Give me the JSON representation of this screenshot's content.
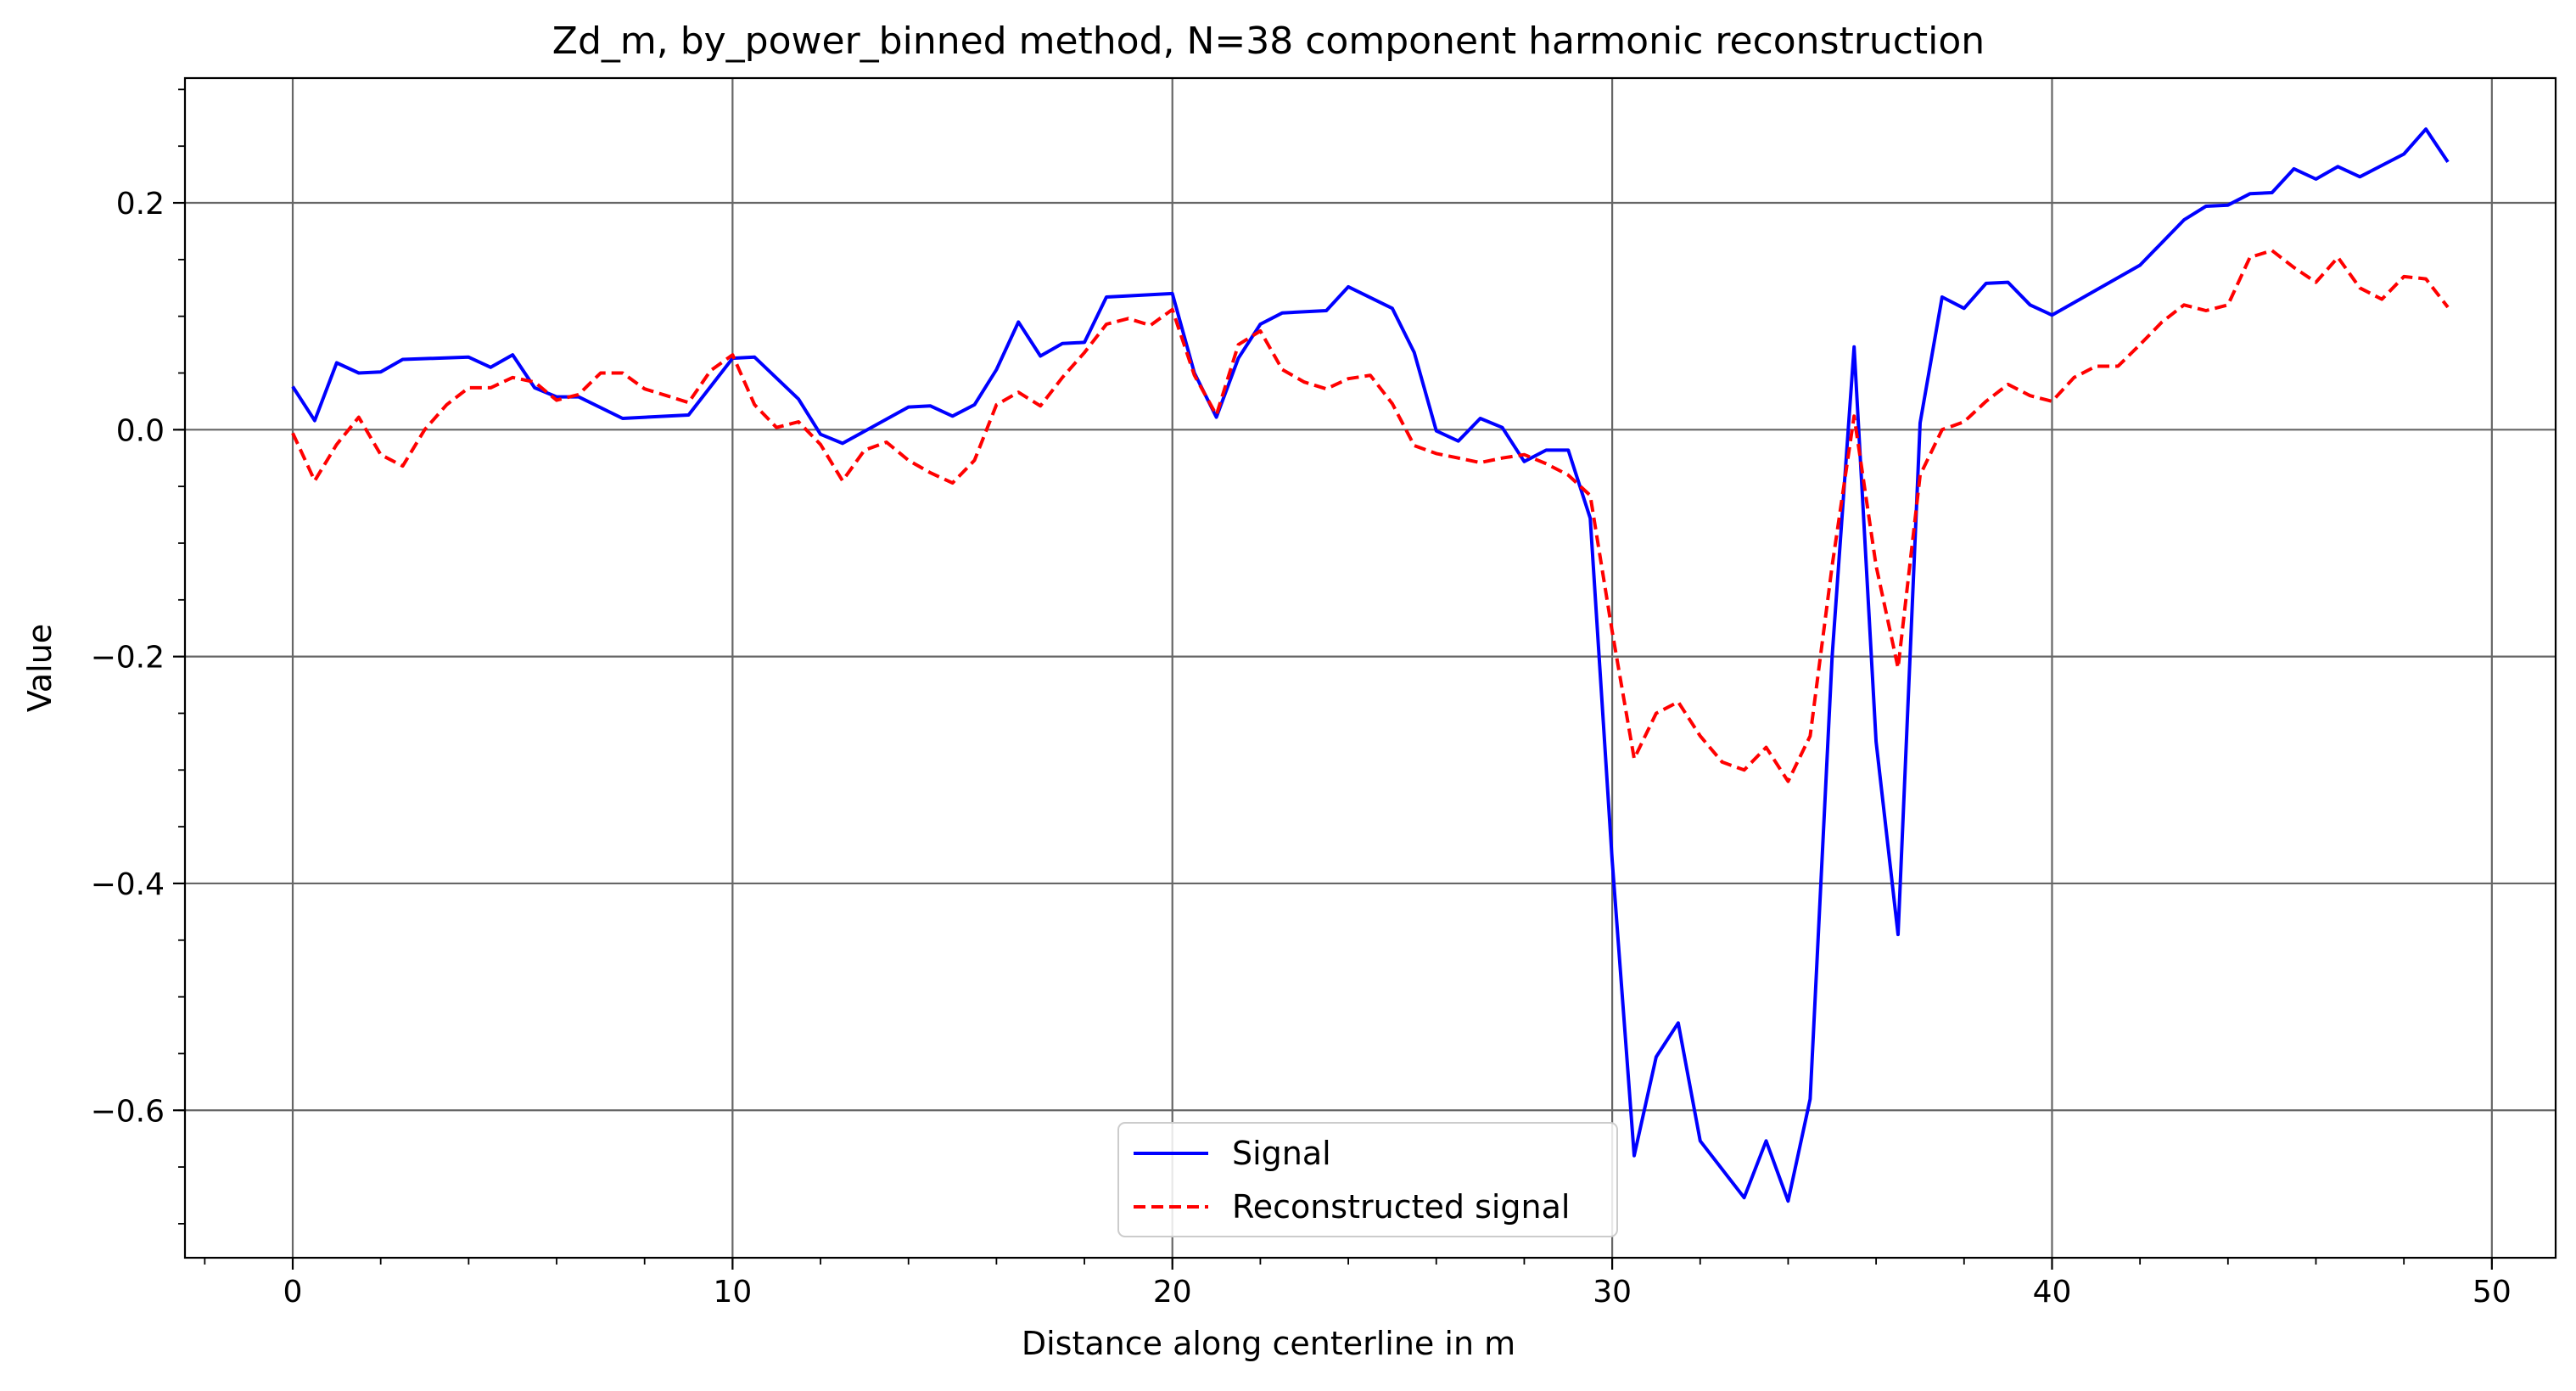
{
  "chart_data": {
    "type": "line",
    "title": "Zd_m, by_power_binned method, N=38 component harmonic reconstruction",
    "xlabel": "Distance along centerline in m",
    "ylabel": "Value",
    "xlim": [
      -2.45,
      51.45
    ],
    "ylim": [
      -0.73,
      0.31
    ],
    "xticks": [
      0,
      10,
      20,
      30,
      40,
      50
    ],
    "xtick_labels": [
      "0",
      "10",
      "20",
      "30",
      "40",
      "50"
    ],
    "xminor_step": 2,
    "yticks": [
      -0.6,
      -0.4,
      -0.2,
      0.0,
      0.2
    ],
    "ytick_labels": [
      "−0.6",
      "−0.4",
      "−0.2",
      "0.0",
      "0.2"
    ],
    "yminor_step": 0.05,
    "grid": true,
    "legend_position": "bottom-center",
    "series": [
      {
        "name": "Signal",
        "color": "#0000ff",
        "style": "solid",
        "x": [
          0.0,
          0.5,
          1.0,
          1.5,
          2.0,
          2.5,
          4.0,
          4.5,
          5.0,
          5.5,
          6.0,
          6.5,
          7.5,
          9.0,
          10.0,
          10.5,
          11.5,
          12.0,
          12.5,
          14.0,
          14.5,
          15.0,
          15.5,
          16.0,
          16.5,
          17.0,
          17.5,
          18.0,
          18.5,
          20.0,
          20.5,
          21.0,
          21.5,
          22.0,
          22.5,
          23.5,
          24.0,
          25.0,
          25.5,
          26.0,
          26.5,
          27.0,
          27.5,
          28.0,
          28.5,
          29.0,
          29.5,
          30.0,
          30.5,
          31.0,
          31.5,
          32.0,
          33.0,
          33.5,
          34.0,
          34.5,
          35.0,
          35.5,
          36.0,
          36.5,
          37.0,
          37.5,
          38.0,
          38.5,
          39.0,
          39.5,
          40.0,
          42.0,
          43.0,
          43.5,
          44.0,
          44.5,
          45.0,
          45.5,
          46.0,
          46.5,
          47.0,
          48.0,
          48.5,
          49.0
        ],
        "values": [
          0.038,
          0.008,
          0.059,
          0.05,
          0.051,
          0.062,
          0.064,
          0.055,
          0.066,
          0.037,
          0.029,
          0.029,
          0.01,
          0.013,
          0.063,
          0.064,
          0.027,
          -0.004,
          -0.012,
          0.02,
          0.021,
          0.012,
          0.022,
          0.053,
          0.095,
          0.065,
          0.076,
          0.077,
          0.117,
          0.12,
          0.05,
          0.011,
          0.063,
          0.093,
          0.103,
          0.105,
          0.126,
          0.107,
          0.068,
          -0.001,
          -0.01,
          0.01,
          0.002,
          -0.028,
          -0.018,
          -0.018,
          -0.078,
          -0.38,
          -0.64,
          -0.553,
          -0.523,
          -0.627,
          -0.677,
          -0.627,
          -0.68,
          -0.59,
          -0.2,
          0.073,
          -0.275,
          -0.445,
          0.006,
          0.117,
          0.107,
          0.129,
          0.13,
          0.11,
          0.101,
          0.145,
          0.185,
          0.197,
          0.198,
          0.208,
          0.209,
          0.23,
          0.221,
          0.232,
          0.223,
          0.243,
          0.265,
          0.236
        ]
      },
      {
        "name": "Reconstructed signal",
        "color": "#ff0000",
        "style": "dashed",
        "x": [
          0.0,
          0.5,
          1.0,
          1.5,
          2.0,
          2.5,
          3.0,
          3.5,
          4.0,
          4.5,
          5.0,
          5.5,
          6.0,
          6.5,
          7.0,
          7.5,
          8.0,
          8.5,
          9.0,
          9.5,
          10.0,
          10.5,
          11.0,
          11.5,
          12.0,
          12.5,
          13.0,
          13.5,
          14.0,
          14.5,
          15.0,
          15.5,
          16.0,
          16.5,
          17.0,
          17.5,
          18.0,
          18.5,
          19.0,
          19.5,
          20.0,
          20.5,
          21.0,
          21.5,
          22.0,
          22.5,
          23.0,
          23.5,
          24.0,
          24.5,
          25.0,
          25.5,
          26.0,
          26.5,
          27.0,
          27.5,
          28.0,
          28.5,
          29.0,
          29.5,
          30.0,
          30.5,
          31.0,
          31.5,
          32.0,
          32.5,
          33.0,
          33.5,
          34.0,
          34.5,
          35.0,
          35.5,
          36.0,
          36.5,
          37.0,
          37.5,
          38.0,
          38.5,
          39.0,
          39.5,
          40.0,
          40.5,
          41.0,
          41.5,
          42.0,
          42.5,
          43.0,
          43.5,
          44.0,
          44.5,
          45.0,
          45.5,
          46.0,
          46.5,
          47.0,
          47.5,
          48.0,
          48.5,
          49.0
        ],
        "values": [
          -0.003,
          -0.045,
          -0.013,
          0.011,
          -0.022,
          -0.032,
          0.0,
          0.022,
          0.037,
          0.037,
          0.046,
          0.042,
          0.026,
          0.031,
          0.05,
          0.05,
          0.036,
          0.03,
          0.024,
          0.052,
          0.066,
          0.022,
          0.002,
          0.007,
          -0.013,
          -0.045,
          -0.018,
          -0.011,
          -0.027,
          -0.038,
          -0.047,
          -0.027,
          0.022,
          0.033,
          0.021,
          0.046,
          0.068,
          0.093,
          0.098,
          0.092,
          0.106,
          0.048,
          0.013,
          0.075,
          0.087,
          0.053,
          0.042,
          0.036,
          0.045,
          0.048,
          0.023,
          -0.014,
          -0.021,
          -0.025,
          -0.029,
          -0.025,
          -0.022,
          -0.03,
          -0.04,
          -0.058,
          -0.178,
          -0.29,
          -0.25,
          -0.24,
          -0.27,
          -0.293,
          -0.3,
          -0.28,
          -0.31,
          -0.27,
          -0.12,
          0.012,
          -0.12,
          -0.21,
          -0.04,
          0.0,
          0.007,
          0.025,
          0.04,
          0.03,
          0.025,
          0.046,
          0.056,
          0.056,
          0.075,
          0.095,
          0.11,
          0.105,
          0.11,
          0.152,
          0.158,
          0.143,
          0.13,
          0.152,
          0.125,
          0.115,
          0.135,
          0.133,
          0.108
        ]
      }
    ]
  }
}
